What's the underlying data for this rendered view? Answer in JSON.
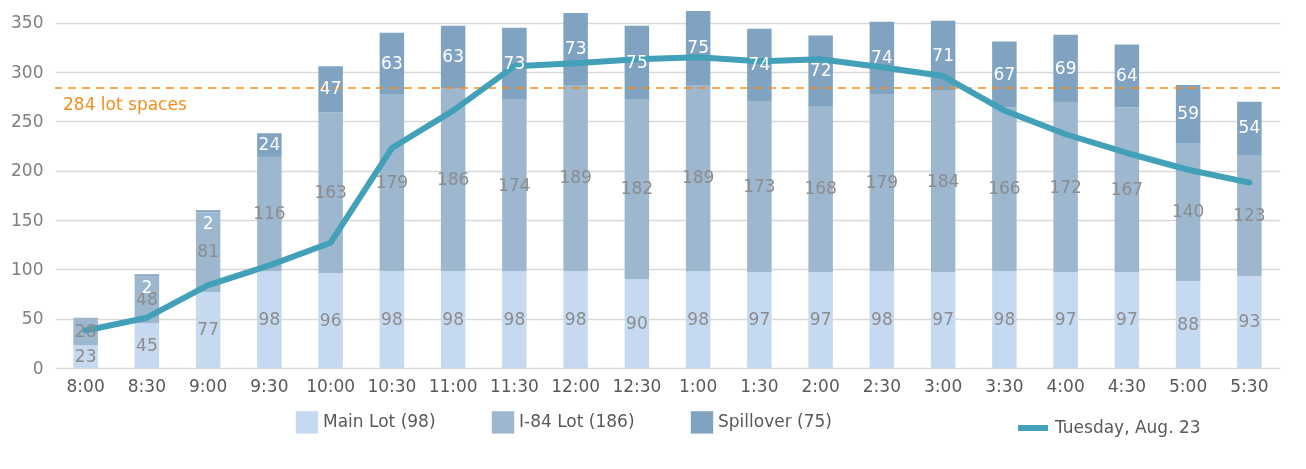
{
  "chart_data": {
    "type": "bar",
    "stacked": true,
    "categories": [
      "8:00",
      "8:30",
      "9:00",
      "9:30",
      "10:00",
      "10:30",
      "11:00",
      "11:30",
      "12:00",
      "12:30",
      "1:00",
      "1:30",
      "2:00",
      "2:30",
      "3:00",
      "3:30",
      "4:00",
      "4:30",
      "5:00",
      "5:30"
    ],
    "series": [
      {
        "name": "Main Lot (98)",
        "color": "#c5daf0",
        "values": [
          23,
          45,
          77,
          98,
          96,
          98,
          98,
          98,
          98,
          90,
          98,
          97,
          97,
          98,
          97,
          98,
          97,
          97,
          88,
          93
        ],
        "value_labels": [
          "23",
          "45",
          "77",
          "98",
          "96",
          "98",
          "98",
          "98",
          "98",
          "90",
          "98",
          "97",
          "97",
          "98",
          "97",
          "98",
          "97",
          "97",
          "88",
          "93"
        ]
      },
      {
        "name": "I-84 Lot (186)",
        "color": "#9db7cf",
        "values": [
          28,
          48,
          81,
          116,
          163,
          179,
          186,
          174,
          189,
          182,
          189,
          173,
          168,
          179,
          184,
          166,
          172,
          167,
          140,
          123
        ],
        "value_labels": [
          "28",
          "48",
          "81",
          "116",
          "163",
          "179",
          "186",
          "174",
          "189",
          "182",
          "189",
          "173",
          "168",
          "179",
          "184",
          "166",
          "172",
          "167",
          "140",
          "123"
        ]
      },
      {
        "name": "Spillover (75)",
        "color": "#7fa3c0",
        "values": [
          null,
          2,
          2,
          24,
          47,
          63,
          63,
          73,
          73,
          75,
          75,
          74,
          72,
          74,
          71,
          67,
          69,
          64,
          59,
          54
        ],
        "value_labels": [
          null,
          "2",
          "2",
          "24",
          "47",
          "63",
          "63",
          "73",
          "73",
          "75",
          "75",
          "74",
          "72",
          "74",
          "71",
          "67",
          "69",
          "64",
          "59",
          "54"
        ]
      },
      {
        "name": "Tuesday, Aug. 23",
        "type": "line",
        "color": "#42a0b8",
        "values": [
          38,
          51,
          84,
          104,
          127,
          223,
          261,
          306,
          309,
          313,
          315,
          311,
          313,
          305,
          296,
          261,
          237,
          218,
          201,
          188
        ]
      }
    ],
    "ylim": [
      0,
      365
    ],
    "yticks": [
      0,
      50,
      100,
      150,
      200,
      250,
      300,
      350
    ],
    "grid": "y",
    "legend": "bottom",
    "marker": "none",
    "ref_lines": [
      {
        "axis": "y",
        "value": 284,
        "label": "284 lot spaces",
        "color": "#f28e1c",
        "line_style": "dashed"
      }
    ]
  }
}
